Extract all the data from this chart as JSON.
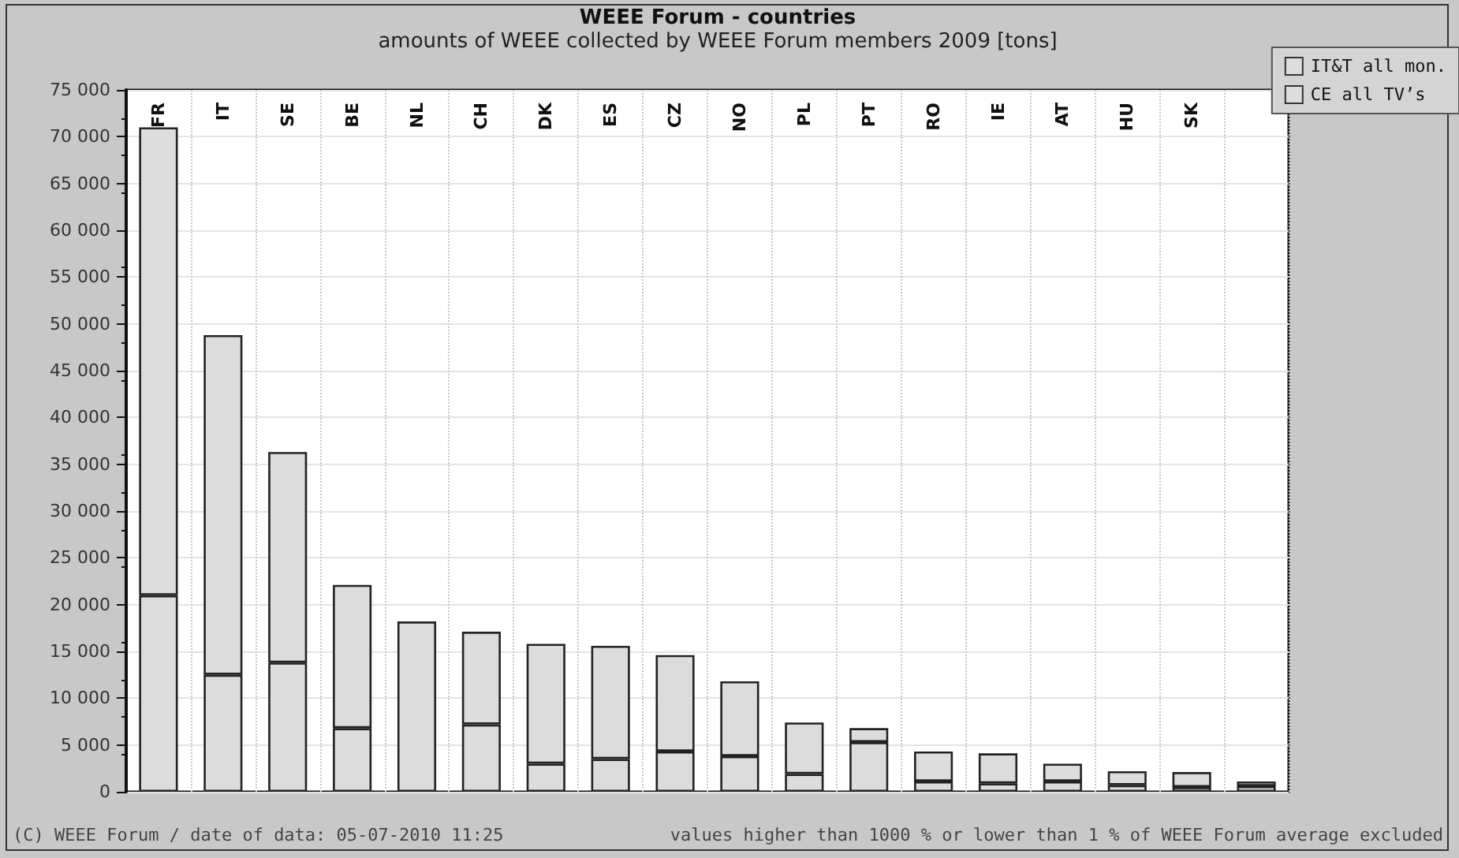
{
  "chart_data": {
    "type": "bar",
    "title": "WEEE Forum - countries",
    "subtitle": "amounts of WEEE collected by WEEE Forum members 2009 [tons]",
    "categories": [
      "FR",
      "IT",
      "SE",
      "BE",
      "NL",
      "CH",
      "DK",
      "ES",
      "CZ",
      "NO",
      "PL",
      "PT",
      "RO",
      "IE",
      "AT",
      "HU",
      "SK",
      null
    ],
    "series": [
      {
        "name": "IT&T all mon.",
        "color": "#dcdcdc",
        "values": [
          21000,
          12500,
          13800,
          6800,
          18200,
          7200,
          3000,
          3500,
          4300,
          3800,
          1900,
          5300,
          1100,
          900,
          1100,
          700,
          500,
          600
        ]
      },
      {
        "name": "CE all TV’s",
        "color": "#dcdcdc",
        "values": [
          50000,
          36300,
          22500,
          15300,
          null,
          9900,
          12800,
          12100,
          10300,
          8000,
          5500,
          1500,
          3200,
          3200,
          1900,
          1500,
          1600,
          500
        ]
      }
    ],
    "stacked": true,
    "ylim": [
      0,
      75000
    ],
    "yticks": [
      {
        "value": 0,
        "label": "0"
      },
      {
        "value": 5000,
        "label": "5 000"
      },
      {
        "value": 10000,
        "label": "10 000"
      },
      {
        "value": 15000,
        "label": "15 000"
      },
      {
        "value": 20000,
        "label": "20 000"
      },
      {
        "value": 25000,
        "label": "25 000"
      },
      {
        "value": 30000,
        "label": "30 000"
      },
      {
        "value": 35000,
        "label": "35 000"
      },
      {
        "value": 40000,
        "label": "40 000"
      },
      {
        "value": 45000,
        "label": "45 000"
      },
      {
        "value": 50000,
        "label": "50 000"
      },
      {
        "value": 55000,
        "label": "55 000"
      },
      {
        "value": 60000,
        "label": "60 000"
      },
      {
        "value": 65000,
        "label": "65 000"
      },
      {
        "value": 70000,
        "label": "70 000"
      },
      {
        "value": 75000,
        "label": "75 000"
      }
    ],
    "grid": true,
    "legend": "top right",
    "annotations": [
      "(C) WEEE Forum / date of data: 05-07-2010 11:25",
      "values higher than 1000 % or lower than 1 % of WEEE Forum average excluded"
    ]
  }
}
